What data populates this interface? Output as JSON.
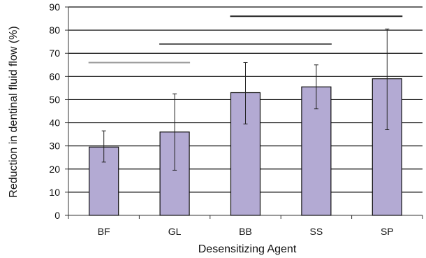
{
  "chart_data": {
    "type": "bar",
    "categories": [
      "BF",
      "GL",
      "BB",
      "SS",
      "SP"
    ],
    "values": [
      29.5,
      36,
      53,
      55.5,
      59
    ],
    "error_low": [
      23,
      19.5,
      39.5,
      46,
      37
    ],
    "error_high": [
      36.5,
      52.5,
      66,
      65,
      80.5
    ],
    "xlabel": "Desensitizing Agent",
    "ylabel": "Reduction in dentinal fluid flow (%)",
    "ylim": [
      0,
      90
    ],
    "yticks": [
      "0",
      "10",
      "20",
      "30",
      "40",
      "50",
      "60",
      "70",
      "80",
      "90"
    ],
    "grid": true,
    "bar_color": "#b3aad3",
    "significance_lines": [
      {
        "from": "BF",
        "to": "GL",
        "y": 66,
        "color": "#9a9a9a"
      },
      {
        "from": "GL",
        "to": "SS",
        "y": 74,
        "color": "#5a5a5a"
      },
      {
        "from": "BB",
        "to": "SP",
        "y": 86,
        "color": "#222222"
      }
    ]
  }
}
